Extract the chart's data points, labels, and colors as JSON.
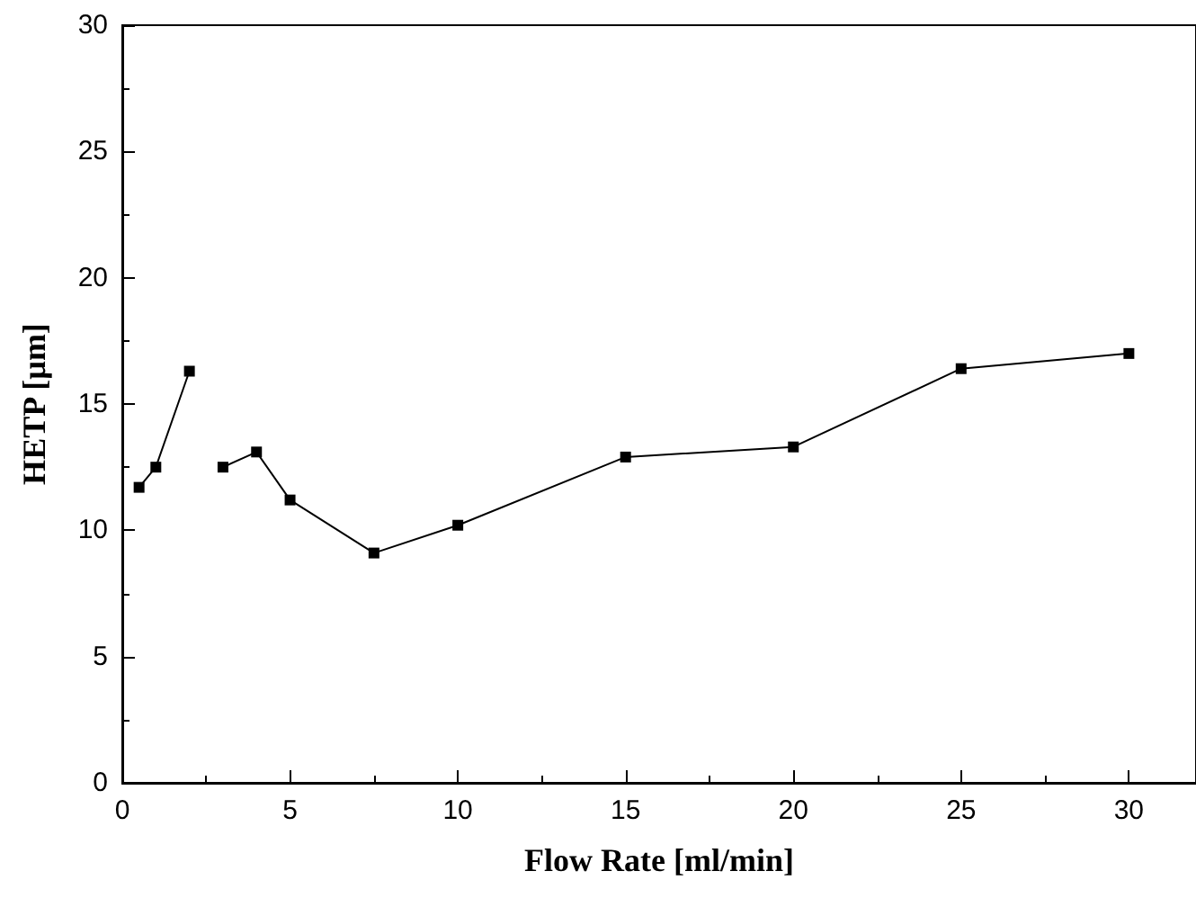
{
  "chart_data": {
    "type": "line",
    "xlabel": "Flow Rate [ml/min]",
    "ylabel": "HETP [µm]",
    "xlim": [
      0,
      32
    ],
    "xticks": [
      0,
      5,
      10,
      15,
      20,
      25,
      30
    ],
    "ylim": [
      0,
      30
    ],
    "yticks": [
      0,
      5,
      10,
      15,
      20,
      25,
      30
    ],
    "marker": "square",
    "line_style": "solid",
    "grid": false,
    "series": [
      {
        "color": "#000000",
        "x": [
          0.5,
          1,
          2
        ],
        "values": [
          11.7,
          12.5,
          16.3
        ]
      },
      {
        "color": "#000000",
        "x": [
          3,
          4,
          5,
          7.5,
          10,
          15,
          20,
          25,
          30
        ],
        "values": [
          12.5,
          13.1,
          11.2,
          9.1,
          10.2,
          12.9,
          13.3,
          16.4,
          17.0
        ]
      }
    ]
  }
}
